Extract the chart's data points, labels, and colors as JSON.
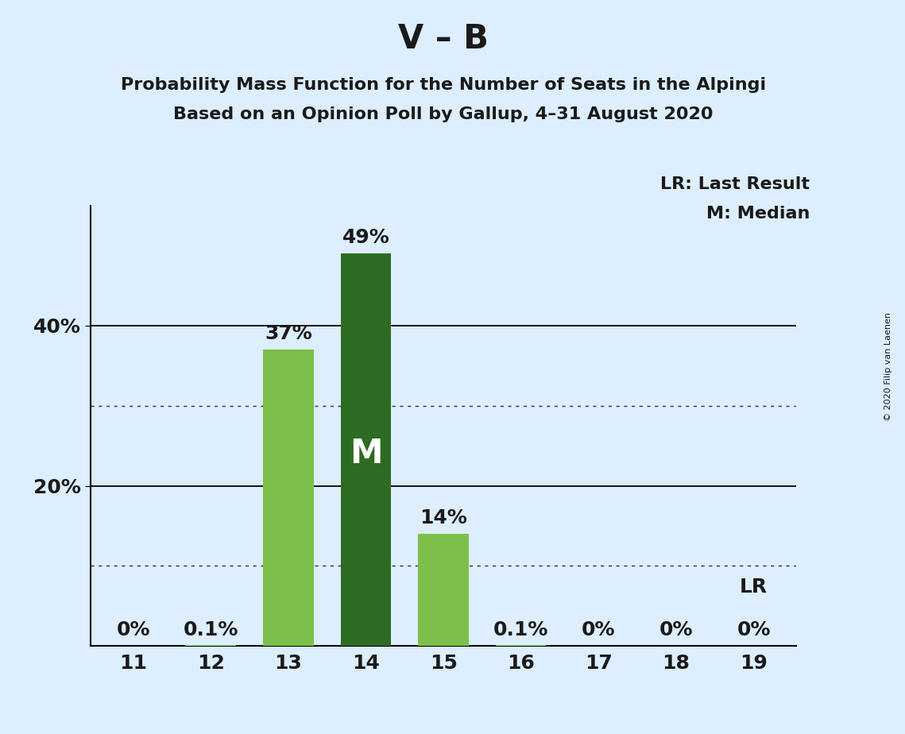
{
  "title": "V – B",
  "subtitle1": "Probability Mass Function for the Number of Seats in the Alpingi",
  "subtitle2": "Based on an Opinion Poll by Gallup, 4–31 August 2020",
  "copyright": "© 2020 Filip van Laenen",
  "categories": [
    11,
    12,
    13,
    14,
    15,
    16,
    17,
    18,
    19
  ],
  "values": [
    0.0,
    0.001,
    0.37,
    0.49,
    0.14,
    0.001,
    0.0,
    0.0,
    0.0
  ],
  "labels": [
    "0%",
    "0.1%",
    "37%",
    "49%",
    "14%",
    "0.1%",
    "0%",
    "0%",
    "0%"
  ],
  "bar_colors": [
    "#90EE90",
    "#90EE90",
    "#8BC34A",
    "#2E7D32",
    "#8BC34A",
    "#90EE90",
    "#90EE90",
    "#90EE90",
    "#90EE90"
  ],
  "median_bar_idx": 3,
  "median_label": "M",
  "lr_bar_idx": 8,
  "lr_label": "LR",
  "background_color": "#DDEEFF",
  "ylim": [
    0,
    0.55
  ],
  "ytick_positions": [
    0.2,
    0.4
  ],
  "ytick_labels": [
    "20%",
    "40%"
  ],
  "grid_solid": [
    0.2,
    0.4
  ],
  "grid_dotted": [
    0.1,
    0.3
  ],
  "legend_lr": "LR: Last Result",
  "legend_m": "M: Median",
  "title_fontsize": 30,
  "subtitle_fontsize": 16,
  "annotation_fontsize": 18,
  "tick_fontsize": 18,
  "legend_fontsize": 16,
  "bar_color_light": "#90EE90",
  "bar_color_medium": "#7CBF4A",
  "bar_color_dark": "#2E6B22"
}
